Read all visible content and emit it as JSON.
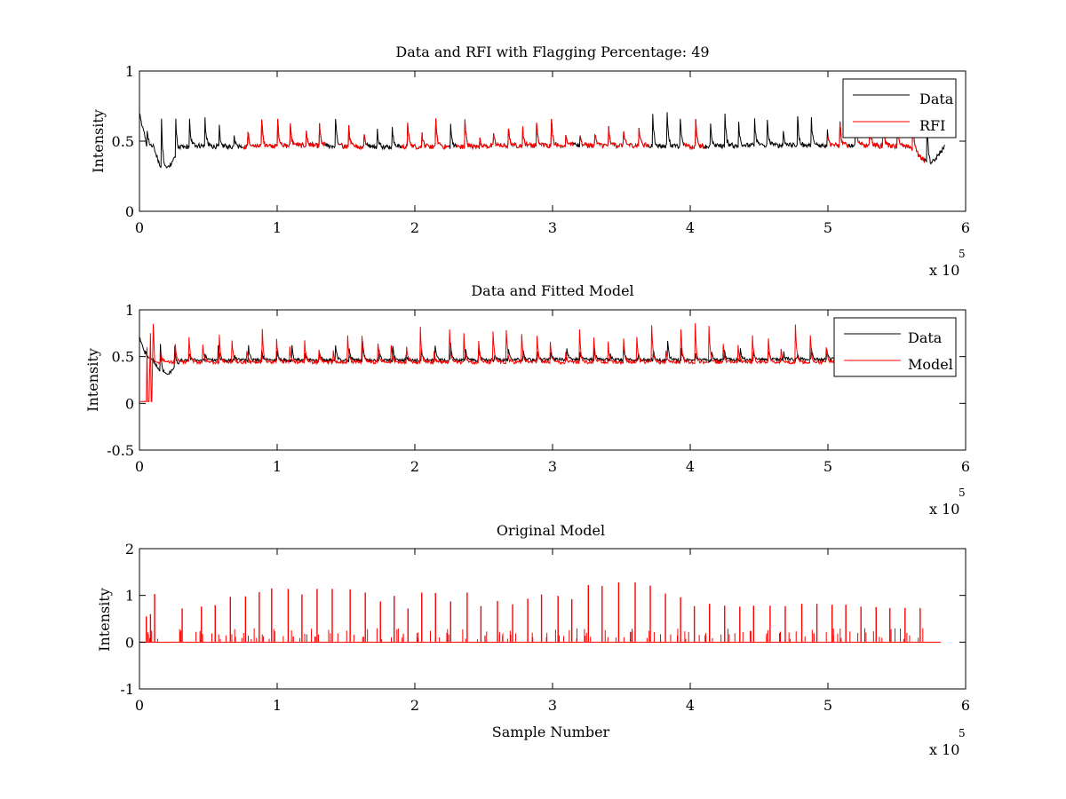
{
  "colors": {
    "data": "#000000",
    "red": "#ff0000",
    "axes": "#000000",
    "background": "#ffffff"
  },
  "chart_data": [
    {
      "type": "line",
      "title": "Data and RFI with Flagging Percentage: 49",
      "xlabel": "",
      "ylabel": "Intensity",
      "xlim": [
        0,
        600000
      ],
      "ylim": [
        0,
        1
      ],
      "x_ticks": [
        0,
        1,
        2,
        3,
        4,
        5,
        6
      ],
      "y_ticks": [
        "0",
        "0.5",
        "1"
      ],
      "x_multiplier": {
        "base": "x 10",
        "exponent": "5"
      },
      "grid": false,
      "legend_position": "top-right",
      "legend": [
        "Data",
        "RFI"
      ],
      "series": [
        {
          "name": "Data",
          "color": "#000000",
          "x": [
            0,
            5000,
            10000,
            15000,
            20000,
            30000,
            40000,
            60000,
            80000,
            120000,
            160000,
            200000,
            240000,
            280000,
            320000,
            360000,
            400000,
            440000,
            480000,
            520000,
            560000,
            570000,
            575000,
            580000,
            585000
          ],
          "values": [
            0.7,
            0.48,
            0.46,
            0.33,
            0.3,
            0.45,
            0.47,
            0.46,
            0.46,
            0.47,
            0.46,
            0.46,
            0.46,
            0.47,
            0.47,
            0.47,
            0.46,
            0.47,
            0.47,
            0.47,
            0.46,
            0.36,
            0.33,
            0.4,
            0.46
          ],
          "peaks": {
            "spacing": 10500,
            "range": [
              5000,
              580000
            ],
            "amplitude_range": [
              0.55,
              0.78
            ]
          }
        },
        {
          "name": "RFI",
          "color": "#ff0000",
          "segments": [
            [
              75000,
              135000
            ],
            [
              145000,
              165000
            ],
            [
              190000,
              225000
            ],
            [
              230000,
              315000
            ],
            [
              320000,
              370000
            ],
            [
              395000,
              410000
            ],
            [
              500000,
              515000
            ],
            [
              520000,
              570000
            ]
          ],
          "baseline": 0.46,
          "peak_amplitude_range": [
            0.55,
            0.78
          ]
        }
      ]
    },
    {
      "type": "line",
      "title": "Data and Fitted Model",
      "xlabel": "",
      "ylabel": "Intensity",
      "xlim": [
        0,
        600000
      ],
      "ylim": [
        -0.5,
        1
      ],
      "x_ticks": [
        0,
        1,
        2,
        3,
        4,
        5,
        6
      ],
      "y_ticks": [
        "-0.5",
        "0",
        "0.5",
        "1"
      ],
      "x_multiplier": {
        "base": "x 10",
        "exponent": "5"
      },
      "grid": false,
      "legend_position": "top-right",
      "legend": [
        "Data",
        "Model"
      ],
      "series": [
        {
          "name": "Data",
          "color": "#000000",
          "x": [
            0,
            5000,
            10000,
            15000,
            20000,
            30000,
            40000,
            80000,
            160000,
            240000,
            320000,
            400000,
            480000,
            520000,
            585000
          ],
          "values": [
            0.7,
            0.48,
            0.46,
            0.33,
            0.3,
            0.45,
            0.46,
            0.46,
            0.46,
            0.46,
            0.47,
            0.46,
            0.47,
            0.47,
            0.47
          ],
          "peaks": {
            "spacing": 10500,
            "range": [
              5000,
              580000
            ],
            "amplitude_range": [
              0.52,
              0.7
            ]
          }
        },
        {
          "name": "Model",
          "color": "#ff0000",
          "x": [
            0,
            5000,
            5500,
            6000,
            7000,
            8000,
            8500,
            9000,
            10000,
            11000,
            12000,
            13000,
            585000
          ],
          "values": [
            0.02,
            0.02,
            0.6,
            0.02,
            0.02,
            0.75,
            0.02,
            0.02,
            0.85,
            0.46,
            0.44,
            0.44,
            0.44
          ],
          "peaks": {
            "spacing": 10500,
            "range": [
              15000,
              580000
            ],
            "amplitude_range": [
              0.55,
              0.88
            ]
          }
        }
      ]
    },
    {
      "type": "line",
      "title": "Original Model",
      "xlabel": "Sample Number",
      "ylabel": "Intensity",
      "xlim": [
        0,
        600000
      ],
      "ylim": [
        -1,
        2
      ],
      "x_ticks": [
        0,
        1,
        2,
        3,
        4,
        5,
        6
      ],
      "y_ticks": [
        "-1",
        "0",
        "1",
        "2"
      ],
      "x_multiplier": {
        "base": "x 10",
        "exponent": "5"
      },
      "grid": false,
      "series": [
        {
          "color": "#ff0000",
          "baseline": 0,
          "x_end": 582000,
          "main_peaks": [
            {
              "x": 5000,
              "y": 0.55
            },
            {
              "x": 8000,
              "y": 0.6
            },
            {
              "x": 11000,
              "y": 1.03
            },
            {
              "x": 31000,
              "y": 0.72
            },
            {
              "x": 45000,
              "y": 0.76
            },
            {
              "x": 55000,
              "y": 0.79
            },
            {
              "x": 66000,
              "y": 0.97
            },
            {
              "x": 77000,
              "y": 0.98
            },
            {
              "x": 87000,
              "y": 1.07
            },
            {
              "x": 96000,
              "y": 1.15
            },
            {
              "x": 108000,
              "y": 1.14
            },
            {
              "x": 118000,
              "y": 1.02
            },
            {
              "x": 129000,
              "y": 1.14
            },
            {
              "x": 140000,
              "y": 1.14
            },
            {
              "x": 153000,
              "y": 1.13
            },
            {
              "x": 164000,
              "y": 1.06
            },
            {
              "x": 175000,
              "y": 0.87
            },
            {
              "x": 185000,
              "y": 0.99
            },
            {
              "x": 195000,
              "y": 0.72
            },
            {
              "x": 205000,
              "y": 1.06
            },
            {
              "x": 215000,
              "y": 1.05
            },
            {
              "x": 226000,
              "y": 0.87
            },
            {
              "x": 238000,
              "y": 1.06
            },
            {
              "x": 248000,
              "y": 0.77
            },
            {
              "x": 260000,
              "y": 0.88
            },
            {
              "x": 271000,
              "y": 0.81
            },
            {
              "x": 282000,
              "y": 0.93
            },
            {
              "x": 292000,
              "y": 1.02
            },
            {
              "x": 304000,
              "y": 0.99
            },
            {
              "x": 314000,
              "y": 0.92
            },
            {
              "x": 326000,
              "y": 1.22
            },
            {
              "x": 336000,
              "y": 1.2
            },
            {
              "x": 348000,
              "y": 1.28
            },
            {
              "x": 360000,
              "y": 1.28
            },
            {
              "x": 371000,
              "y": 1.21
            },
            {
              "x": 382000,
              "y": 1.04
            },
            {
              "x": 393000,
              "y": 0.96
            },
            {
              "x": 403000,
              "y": 0.77
            },
            {
              "x": 414000,
              "y": 0.82
            },
            {
              "x": 425000,
              "y": 0.78
            },
            {
              "x": 436000,
              "y": 0.76
            },
            {
              "x": 446000,
              "y": 0.78
            },
            {
              "x": 458000,
              "y": 0.78
            },
            {
              "x": 469000,
              "y": 0.77
            },
            {
              "x": 481000,
              "y": 0.82
            },
            {
              "x": 492000,
              "y": 0.82
            },
            {
              "x": 503000,
              "y": 0.8
            },
            {
              "x": 513000,
              "y": 0.8
            },
            {
              "x": 524000,
              "y": 0.76
            },
            {
              "x": 535000,
              "y": 0.75
            },
            {
              "x": 545000,
              "y": 0.73
            },
            {
              "x": 556000,
              "y": 0.73
            },
            {
              "x": 567000,
              "y": 0.73
            }
          ],
          "side_peak_amplitude_range": [
            0.06,
            0.3
          ]
        }
      ]
    }
  ]
}
